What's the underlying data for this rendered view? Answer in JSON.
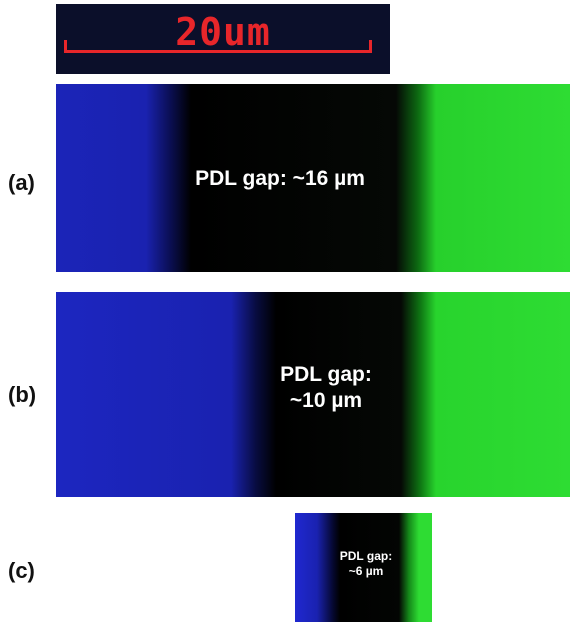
{
  "scale_bar": {
    "label": "20um"
  },
  "panels": [
    {
      "label": "(a)",
      "text": [
        "PDL gap: ~16 µm"
      ]
    },
    {
      "label": "(b)",
      "text": [
        "PDL gap:",
        "~10 µm"
      ]
    },
    {
      "label": "(c)",
      "text": [
        "PDL gap:",
        "~6 µm"
      ]
    }
  ]
}
